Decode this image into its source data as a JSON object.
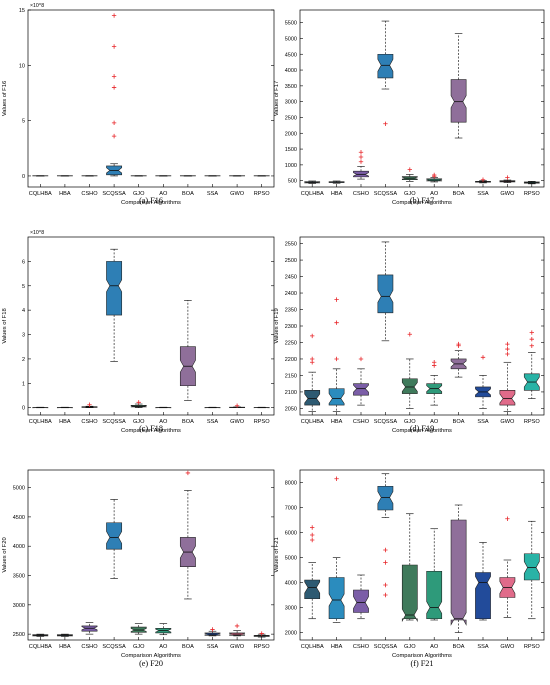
{
  "chart_data": [
    {
      "type": "box",
      "caption": "(a) F16",
      "ylabel": "Values of F16",
      "xlabel": "Comparison Algorithms",
      "exponent": "×10^8",
      "ylim": [
        -1,
        15
      ],
      "yticks": [
        0,
        5,
        10,
        15
      ],
      "categories": [
        "CQLHBA",
        "HBA",
        "CSHO",
        "SCQSSA",
        "GJO",
        "AO",
        "BOA",
        "SSA",
        "GWO",
        "RPSO"
      ],
      "colors": [
        "#2d5a72",
        "#2b8cbe",
        "#7b5ea7",
        "#2e7fb5",
        "#3f7a5b",
        "#2e9a7a",
        "#8f6f9a",
        "#224b9a",
        "#e06b8a",
        "#29b3a6"
      ],
      "boxes": [
        {
          "q1": 0,
          "med": 0,
          "q3": 0.02,
          "lo": 0,
          "hi": 0.03,
          "out": []
        },
        {
          "q1": 0,
          "med": 0,
          "q3": 0.02,
          "lo": 0,
          "hi": 0.03,
          "out": []
        },
        {
          "q1": 0,
          "med": 0,
          "q3": 0.02,
          "lo": 0,
          "hi": 0.03,
          "out": []
        },
        {
          "q1": 0.1,
          "med": 0.5,
          "q3": 0.9,
          "lo": 0,
          "hi": 1.1,
          "out": [
            14.5,
            11.7,
            9.0,
            8.0,
            4.8,
            3.6
          ]
        },
        {
          "q1": 0,
          "med": 0,
          "q3": 0.02,
          "lo": 0,
          "hi": 0.03,
          "out": []
        },
        {
          "q1": 0,
          "med": 0,
          "q3": 0.02,
          "lo": 0,
          "hi": 0.03,
          "out": []
        },
        {
          "q1": 0,
          "med": 0,
          "q3": 0.02,
          "lo": 0,
          "hi": 0.03,
          "out": []
        },
        {
          "q1": 0,
          "med": 0,
          "q3": 0.02,
          "lo": 0,
          "hi": 0.03,
          "out": []
        },
        {
          "q1": 0,
          "med": 0,
          "q3": 0.02,
          "lo": 0,
          "hi": 0.03,
          "out": []
        },
        {
          "q1": 0,
          "med": 0,
          "q3": 0.02,
          "lo": 0,
          "hi": 0.03,
          "out": []
        }
      ]
    },
    {
      "type": "box",
      "caption": "(b) F17",
      "ylabel": "Values of F17",
      "xlabel": "Comparison Algorithms",
      "exponent": "",
      "ylim": [
        300,
        5900
      ],
      "yticks": [
        500,
        1000,
        1500,
        2000,
        2500,
        3000,
        3500,
        4000,
        4500,
        5000,
        5500
      ],
      "categories": [
        "CQLHBA",
        "HBA",
        "CSHO",
        "SCQSSA",
        "GJO",
        "AO",
        "BOA",
        "SSA",
        "GWO",
        "RPSO"
      ],
      "colors": [
        "#2d5a72",
        "#2b8cbe",
        "#7b5ea7",
        "#2e7fb5",
        "#3f7a5b",
        "#2e9a7a",
        "#8f6f9a",
        "#224b9a",
        "#e06b8a",
        "#29b3a6"
      ],
      "boxes": [
        {
          "q1": 430,
          "med": 450,
          "q3": 470,
          "lo": 410,
          "hi": 490,
          "out": []
        },
        {
          "q1": 440,
          "med": 455,
          "q3": 470,
          "lo": 420,
          "hi": 490,
          "out": []
        },
        {
          "q1": 620,
          "med": 700,
          "q3": 800,
          "lo": 550,
          "hi": 950,
          "out": [
            1400,
            1250,
            1100
          ]
        },
        {
          "q1": 3750,
          "med": 4150,
          "q3": 4500,
          "lo": 3400,
          "hi": 5550,
          "out": [
            2300
          ]
        },
        {
          "q1": 530,
          "med": 580,
          "q3": 630,
          "lo": 480,
          "hi": 700,
          "out": [
            850
          ]
        },
        {
          "q1": 490,
          "med": 520,
          "q3": 560,
          "lo": 460,
          "hi": 600,
          "out": [
            680,
            640
          ]
        },
        {
          "q1": 2350,
          "med": 3000,
          "q3": 3700,
          "lo": 1850,
          "hi": 5150,
          "out": []
        },
        {
          "q1": 450,
          "med": 465,
          "q3": 480,
          "lo": 430,
          "hi": 500,
          "out": [
            530
          ]
        },
        {
          "q1": 460,
          "med": 480,
          "q3": 500,
          "lo": 440,
          "hi": 520,
          "out": [
            600
          ]
        },
        {
          "q1": 420,
          "med": 440,
          "q3": 460,
          "lo": 400,
          "hi": 480,
          "out": []
        }
      ]
    },
    {
      "type": "box",
      "caption": "(c) F18",
      "ylabel": "Values of F18",
      "xlabel": "Comparison Algorithms",
      "exponent": "×10^8",
      "ylim": [
        -0.3,
        7
      ],
      "yticks": [
        0,
        1,
        2,
        3,
        4,
        5,
        6
      ],
      "categories": [
        "CQLHBA",
        "HBA",
        "CSHO",
        "SCQSSA",
        "GJO",
        "AO",
        "BOA",
        "SSA",
        "GWO",
        "RPSO"
      ],
      "colors": [
        "#2d5a72",
        "#2b8cbe",
        "#7b5ea7",
        "#2e7fb5",
        "#3f7a5b",
        "#2e9a7a",
        "#8f6f9a",
        "#224b9a",
        "#e06b8a",
        "#29b3a6"
      ],
      "boxes": [
        {
          "q1": 0,
          "med": 0,
          "q3": 0.01,
          "lo": 0,
          "hi": 0.02,
          "out": []
        },
        {
          "q1": 0,
          "med": 0,
          "q3": 0.01,
          "lo": 0,
          "hi": 0.02,
          "out": []
        },
        {
          "q1": 0.01,
          "med": 0.02,
          "q3": 0.04,
          "lo": 0,
          "hi": 0.06,
          "out": [
            0.12
          ]
        },
        {
          "q1": 3.8,
          "med": 5.0,
          "q3": 6.0,
          "lo": 1.9,
          "hi": 6.5,
          "out": []
        },
        {
          "q1": 0.03,
          "med": 0.06,
          "q3": 0.1,
          "lo": 0,
          "hi": 0.15,
          "out": [
            0.22
          ]
        },
        {
          "q1": 0,
          "med": 0,
          "q3": 0.01,
          "lo": 0,
          "hi": 0.02,
          "out": []
        },
        {
          "q1": 0.9,
          "med": 1.7,
          "q3": 2.5,
          "lo": 0.3,
          "hi": 4.4,
          "out": []
        },
        {
          "q1": 0,
          "med": 0,
          "q3": 0.01,
          "lo": 0,
          "hi": 0.02,
          "out": []
        },
        {
          "q1": 0,
          "med": 0.01,
          "q3": 0.02,
          "lo": 0,
          "hi": 0.03,
          "out": [
            0.08
          ]
        },
        {
          "q1": 0,
          "med": 0,
          "q3": 0.01,
          "lo": 0,
          "hi": 0.02,
          "out": []
        }
      ]
    },
    {
      "type": "box",
      "caption": "(d) F19",
      "ylabel": "Values of F19",
      "xlabel": "Comparison Algorithms",
      "exponent": "",
      "ylim": [
        2030,
        2570
      ],
      "yticks": [
        2050,
        2100,
        2150,
        2200,
        2250,
        2300,
        2350,
        2400,
        2450,
        2500,
        2550
      ],
      "categories": [
        "CQLHBA",
        "HBA",
        "CSHO",
        "SCQSSA",
        "GJO",
        "AO",
        "BOA",
        "SSA",
        "GWO",
        "RPSO"
      ],
      "colors": [
        "#2d5a72",
        "#2b8cbe",
        "#7b5ea7",
        "#2e7fb5",
        "#3f7a5b",
        "#2e9a7a",
        "#8f6f9a",
        "#224b9a",
        "#e06b8a",
        "#29b3a6"
      ],
      "boxes": [
        {
          "q1": 2060,
          "med": 2080,
          "q3": 2105,
          "lo": 2040,
          "hi": 2160,
          "out": [
            2270,
            2200,
            2190
          ]
        },
        {
          "q1": 2060,
          "med": 2080,
          "q3": 2110,
          "lo": 2040,
          "hi": 2170,
          "out": [
            2380,
            2310,
            2200
          ]
        },
        {
          "q1": 2090,
          "med": 2110,
          "q3": 2125,
          "lo": 2060,
          "hi": 2170,
          "out": [
            2200
          ]
        },
        {
          "q1": 2340,
          "med": 2390,
          "q3": 2455,
          "lo": 2255,
          "hi": 2555,
          "out": []
        },
        {
          "q1": 2095,
          "med": 2115,
          "q3": 2140,
          "lo": 2050,
          "hi": 2200,
          "out": [
            2275
          ]
        },
        {
          "q1": 2095,
          "med": 2110,
          "q3": 2125,
          "lo": 2060,
          "hi": 2150,
          "out": [
            2190,
            2180
          ]
        },
        {
          "q1": 2170,
          "med": 2185,
          "q3": 2200,
          "lo": 2145,
          "hi": 2225,
          "out": [
            2245,
            2240
          ]
        },
        {
          "q1": 2085,
          "med": 2100,
          "q3": 2115,
          "lo": 2050,
          "hi": 2150,
          "out": [
            2205
          ]
        },
        {
          "q1": 2060,
          "med": 2080,
          "q3": 2105,
          "lo": 2040,
          "hi": 2190,
          "out": [
            2245,
            2230,
            2215
          ]
        },
        {
          "q1": 2105,
          "med": 2130,
          "q3": 2155,
          "lo": 2080,
          "hi": 2220,
          "out": [
            2280,
            2260,
            2240
          ]
        }
      ]
    },
    {
      "type": "box",
      "caption": "(e) F20",
      "ylabel": "Values of F20",
      "xlabel": "Comparison Algorithms",
      "exponent": "",
      "ylim": [
        2400,
        5300
      ],
      "yticks": [
        2500,
        3000,
        3500,
        4000,
        4500,
        5000
      ],
      "categories": [
        "CQLHBA",
        "HBA",
        "CSHO",
        "SCQSSA",
        "GJO",
        "AO",
        "BOA",
        "SSA",
        "GWO",
        "RPSO"
      ],
      "colors": [
        "#2d5a72",
        "#2b8cbe",
        "#7b5ea7",
        "#2e7fb5",
        "#3f7a5b",
        "#2e9a7a",
        "#8f6f9a",
        "#224b9a",
        "#e06b8a",
        "#29b3a6"
      ],
      "boxes": [
        {
          "q1": 2470,
          "med": 2480,
          "q3": 2490,
          "lo": 2460,
          "hi": 2500,
          "out": []
        },
        {
          "q1": 2470,
          "med": 2480,
          "q3": 2490,
          "lo": 2460,
          "hi": 2500,
          "out": []
        },
        {
          "q1": 2550,
          "med": 2600,
          "q3": 2640,
          "lo": 2500,
          "hi": 2700,
          "out": []
        },
        {
          "q1": 3950,
          "med": 4150,
          "q3": 4400,
          "lo": 3450,
          "hi": 4800,
          "out": []
        },
        {
          "q1": 2530,
          "med": 2570,
          "q3": 2620,
          "lo": 2500,
          "hi": 2680,
          "out": []
        },
        {
          "q1": 2520,
          "med": 2560,
          "q3": 2600,
          "lo": 2490,
          "hi": 2680,
          "out": []
        },
        {
          "q1": 3650,
          "med": 3900,
          "q3": 4150,
          "lo": 3100,
          "hi": 4950,
          "out": [
            5250
          ]
        },
        {
          "q1": 2480,
          "med": 2500,
          "q3": 2520,
          "lo": 2470,
          "hi": 2550,
          "out": [
            2580
          ]
        },
        {
          "q1": 2480,
          "med": 2500,
          "q3": 2520,
          "lo": 2470,
          "hi": 2560,
          "out": [
            2640
          ]
        },
        {
          "q1": 2460,
          "med": 2470,
          "q3": 2480,
          "lo": 2450,
          "hi": 2500,
          "out": [
            2510
          ]
        }
      ]
    },
    {
      "type": "box",
      "caption": "(f) F21",
      "ylabel": "Values of F21",
      "xlabel": "Comparison Algorithms",
      "exponent": "",
      "ylim": [
        1700,
        8500
      ],
      "yticks": [
        2000,
        3000,
        4000,
        5000,
        6000,
        7000,
        8000
      ],
      "categories": [
        "CQLHBA",
        "HBA",
        "CSHO",
        "SCQSSA",
        "GJO",
        "AO",
        "BOA",
        "SSA",
        "GWO",
        "RPSO"
      ],
      "colors": [
        "#2d5a72",
        "#2b8cbe",
        "#7b5ea7",
        "#2e7fb5",
        "#3f7a5b",
        "#2e9a7a",
        "#8f6f9a",
        "#224b9a",
        "#e06b8a",
        "#29b3a6"
      ],
      "boxes": [
        {
          "q1": 3350,
          "med": 3800,
          "q3": 4100,
          "lo": 2550,
          "hi": 4800,
          "out": [
            6200,
            5900,
            5700
          ]
        },
        {
          "q1": 2550,
          "med": 3300,
          "q3": 4200,
          "lo": 2400,
          "hi": 5000,
          "out": [
            8150
          ]
        },
        {
          "q1": 2800,
          "med": 3200,
          "q3": 3700,
          "lo": 2550,
          "hi": 4300,
          "out": []
        },
        {
          "q1": 6900,
          "med": 7400,
          "q3": 7850,
          "lo": 6600,
          "hi": 8350,
          "out": [
            5300,
            4800,
            3900,
            3500
          ]
        },
        {
          "q1": 2550,
          "med": 2700,
          "q3": 4700,
          "lo": 2500,
          "hi": 6750,
          "out": []
        },
        {
          "q1": 2550,
          "med": 3000,
          "q3": 4450,
          "lo": 2500,
          "hi": 6150,
          "out": []
        },
        {
          "q1": 2500,
          "med": 2550,
          "q3": 6500,
          "lo": 2000,
          "hi": 7100,
          "out": []
        },
        {
          "q1": 2550,
          "med": 4000,
          "q3": 4400,
          "lo": 2500,
          "hi": 5600,
          "out": []
        },
        {
          "q1": 3400,
          "med": 3800,
          "q3": 4200,
          "lo": 2600,
          "hi": 4900,
          "out": [
            6550
          ]
        },
        {
          "q1": 4100,
          "med": 4600,
          "q3": 5150,
          "lo": 2550,
          "hi": 6450,
          "out": []
        }
      ]
    }
  ]
}
